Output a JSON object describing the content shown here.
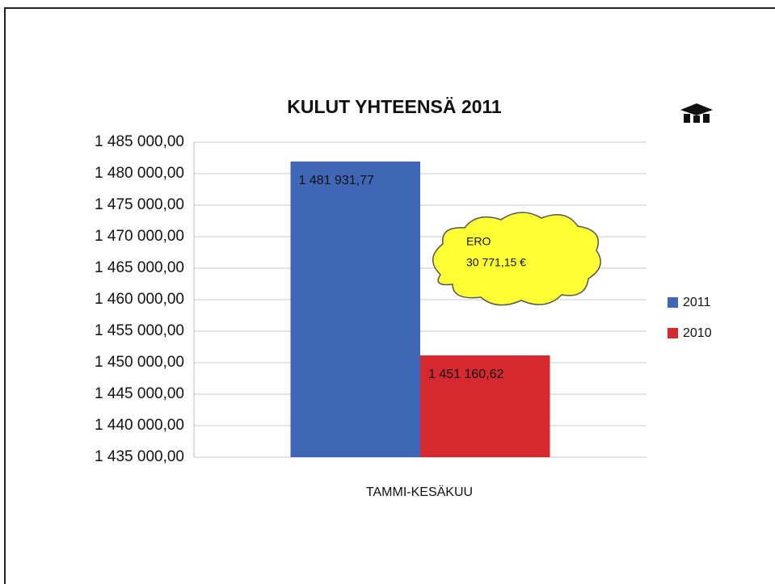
{
  "chart_data": {
    "type": "bar",
    "title": "KULUT YHTEENSÄ 2011",
    "categories": [
      "TAMMI-KESÄKUU"
    ],
    "series": [
      {
        "name": "2011",
        "color": "#3f67b5",
        "values": [
          1481931.77
        ],
        "value_labels": [
          "1 481 931,77"
        ]
      },
      {
        "name": "2010",
        "color": "#d42a2f",
        "values": [
          1451160.62
        ],
        "value_labels": [
          "1 451 160,62"
        ]
      }
    ],
    "ylim": [
      1435000,
      1485000
    ],
    "yticks": [
      {
        "value": 1435000,
        "label": "1 435 000,00"
      },
      {
        "value": 1440000,
        "label": "1 440 000,00"
      },
      {
        "value": 1445000,
        "label": "1 445 000,00"
      },
      {
        "value": 1450000,
        "label": "1 450 000,00"
      },
      {
        "value": 1455000,
        "label": "1 455 000,00"
      },
      {
        "value": 1460000,
        "label": "1 460 000,00"
      },
      {
        "value": 1465000,
        "label": "1 465 000,00"
      },
      {
        "value": 1470000,
        "label": "1 470 000,00"
      },
      {
        "value": 1475000,
        "label": "1 475 000,00"
      },
      {
        "value": 1480000,
        "label": "1 480 000,00"
      },
      {
        "value": 1485000,
        "label": "1 485 000,00"
      }
    ],
    "grid": true,
    "legend": "right",
    "annotations": [
      "ERO",
      "30 771,15 €"
    ]
  }
}
